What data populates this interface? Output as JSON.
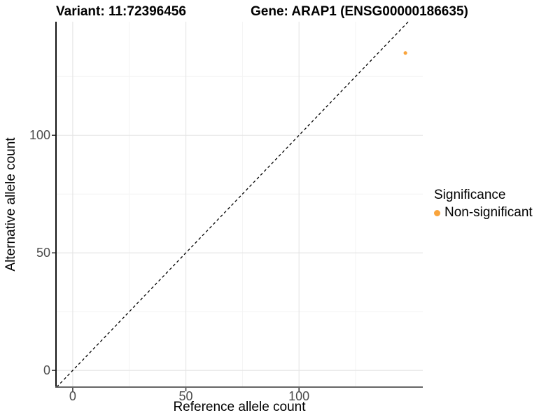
{
  "figure": {
    "title_variant": "Variant: 11:72396456",
    "title_gene": "Gene: ARAP1 (ENSG00000186635)"
  },
  "axes": {
    "x": {
      "label": "Reference allele count"
    },
    "y": {
      "label": "Alternative allele count"
    }
  },
  "legend": {
    "title": "Significance",
    "items": [
      {
        "label": "Non-significant",
        "color": "#F9A43C"
      }
    ]
  },
  "chart_data": {
    "type": "scatter",
    "title": "Variant: 11:72396456 | Gene: ARAP1 (ENSG00000186635)",
    "xlabel": "Reference allele count",
    "ylabel": "Alternative allele count",
    "xlim": [
      -7.4,
      154.7
    ],
    "ylim": [
      -7.1,
      148.3
    ],
    "x_ticks": [
      0,
      50,
      100
    ],
    "y_ticks": [
      0,
      50,
      100
    ],
    "x_minor_ticks": [
      25,
      75,
      125
    ],
    "y_minor_ticks": [
      25,
      75,
      125
    ],
    "grid": true,
    "legend_position": "right",
    "series": [
      {
        "name": "Non-significant",
        "color": "#F9A43C",
        "points": [
          {
            "x": 147,
            "y": 135
          }
        ]
      }
    ],
    "reference_line": {
      "equation": "y = x",
      "style": "dashed",
      "color": "#000000"
    },
    "styles": {
      "grid_major_color": "#E4E4E4",
      "grid_minor_color": "#F3F3F3",
      "axis_line_left_color": "#141414",
      "axis_line_bottom_color": "#666666",
      "tick_mark_color": "#333333",
      "tick_label_color": "#4D4D4D"
    }
  }
}
